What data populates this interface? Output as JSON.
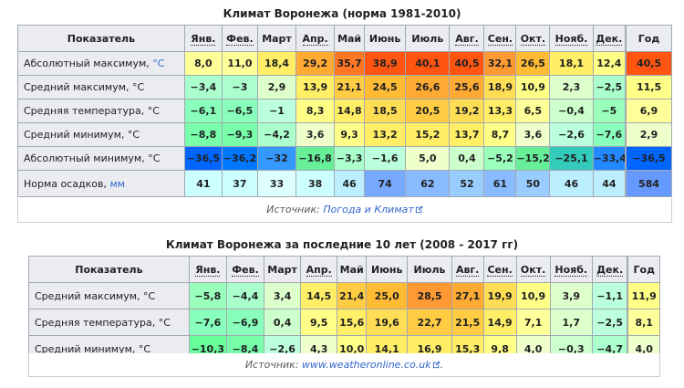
{
  "colors": {
    "header_bg": "#eaecf0",
    "border": "#a2a9b1",
    "link": "#3366cc"
  },
  "table1": {
    "caption": "Климат Воронежа (норма 1981-2010)",
    "header": {
      "label": "Показатель",
      "months": [
        "Янв.",
        "Фев.",
        "Март",
        "Апр.",
        "Май",
        "Июнь",
        "Июль",
        "Авг.",
        "Сен.",
        "Окт.",
        "Нояб.",
        "Дек."
      ],
      "year": "Год"
    },
    "rows": [
      {
        "label": "Абсолютный максимум, ",
        "unit": "°C",
        "values": [
          "8,0",
          "11,0",
          "18,4",
          "29,2",
          "35,7",
          "38,9",
          "40,1",
          "40,5",
          "32,1",
          "26,5",
          "18,1",
          "12,4"
        ],
        "year": "40,5",
        "colors": [
          "#ffff99",
          "#ffff99",
          "#ffee66",
          "#ffaa33",
          "#ff7722",
          "#ff5511",
          "#ff5511",
          "#ff5511",
          "#ff9933",
          "#ffbb33",
          "#ffee66",
          "#ffff88"
        ],
        "year_color": "#ff5511"
      },
      {
        "label": "Средний максимум, °C",
        "unit": "",
        "values": [
          "−3,4",
          "−3",
          "2,9",
          "13,9",
          "21,1",
          "24,5",
          "26,6",
          "25,6",
          "18,9",
          "10,9",
          "2,3",
          "−2,5"
        ],
        "year": "11,5",
        "colors": [
          "#aaffcc",
          "#aaffcc",
          "#ddffcc",
          "#ffee66",
          "#ffcc44",
          "#ffbb33",
          "#ffaa33",
          "#ffaa33",
          "#ffdd55",
          "#ffff88",
          "#ddffcc",
          "#aaffcc"
        ],
        "year_color": "#ffff88"
      },
      {
        "label": "Средняя температура, °C",
        "unit": "",
        "values": [
          "−6,1",
          "−6,5",
          "−1",
          "8,3",
          "14,8",
          "18,5",
          "20,5",
          "19,2",
          "13,3",
          "6,5",
          "−0,4",
          "−5"
        ],
        "year": "6,9",
        "colors": [
          "#88ffbb",
          "#88ffbb",
          "#bbffdd",
          "#ffff88",
          "#ffee66",
          "#ffdd55",
          "#ffcc44",
          "#ffdd55",
          "#ffee66",
          "#ffff99",
          "#ccffcc",
          "#99ffbb"
        ],
        "year_color": "#ffff99"
      },
      {
        "label": "Средний минимум, °C",
        "unit": "",
        "values": [
          "−8,8",
          "−9,3",
          "−4,2",
          "3,6",
          "9,3",
          "13,2",
          "15,2",
          "13,7",
          "8,7",
          "3,6",
          "−2,6",
          "−7,6"
        ],
        "year": "2,9",
        "colors": [
          "#77ffaa",
          "#77ffaa",
          "#aaffcc",
          "#eeffcc",
          "#ffff88",
          "#ffee66",
          "#ffee66",
          "#ffee66",
          "#ffff88",
          "#eeffcc",
          "#bbffdd",
          "#88ffbb"
        ],
        "year_color": "#eeffcc"
      },
      {
        "label": "Абсолютный минимум, °C",
        "unit": "",
        "values": [
          "−36,5",
          "−36,2",
          "−32",
          "−16,8",
          "−3,3",
          "−1,6",
          "5,0",
          "0,4",
          "−5,2",
          "−15,2",
          "−25,1",
          "−33,4"
        ],
        "year": "−36,5",
        "colors": [
          "#0066ff",
          "#0077ff",
          "#3399ff",
          "#66ee99",
          "#aaffcc",
          "#bbffdd",
          "#eeffcc",
          "#ccffcc",
          "#99ffbb",
          "#66ee99",
          "#33ccbb",
          "#2288ff"
        ],
        "year_color": "#0066ff"
      }
    ],
    "precip": {
      "label": "Норма осадков, ",
      "unit": "мм",
      "values": [
        "41",
        "37",
        "33",
        "38",
        "46",
        "74",
        "62",
        "52",
        "61",
        "50",
        "46",
        "44"
      ],
      "year": "584",
      "colors": [
        "#ccffff",
        "#ccffff",
        "#ddffff",
        "#ccffff",
        "#bbeeff",
        "#77aaff",
        "#88bbff",
        "#99ccff",
        "#88bbff",
        "#99ccff",
        "#bbeeff",
        "#bbeeff"
      ],
      "year_color": "#6699ff"
    },
    "source": {
      "prefix": "Источник: ",
      "link": "Погода и Климат"
    }
  },
  "table2": {
    "caption": "Климат Воронежа за последние 10 лет (2008 - 2017 гг)",
    "header": {
      "label": "Показатель",
      "months": [
        "Янв.",
        "Фев.",
        "Март",
        "Апр.",
        "Май",
        "Июнь",
        "Июль",
        "Авг.",
        "Сен.",
        "Окт.",
        "Нояб.",
        "Дек."
      ],
      "year": "Год"
    },
    "rows": [
      {
        "label": "Средний максимум, °C",
        "values": [
          "−5,8",
          "−4,4",
          "3,4",
          "14,5",
          "21,4",
          "25,0",
          "28,5",
          "27,1",
          "19,9",
          "10,9",
          "3,9",
          "−1,1"
        ],
        "year": "11,9",
        "colors": [
          "#99ffbb",
          "#aaffcc",
          "#ddffcc",
          "#ffee66",
          "#ffcc44",
          "#ffbb33",
          "#ff9933",
          "#ffaa33",
          "#ffdd55",
          "#ffff88",
          "#ddffcc",
          "#bbffdd"
        ],
        "year_color": "#ffff88"
      },
      {
        "label": "Средняя температура, °C",
        "values": [
          "−7,6",
          "−6,9",
          "0,4",
          "9,5",
          "15,6",
          "19,6",
          "22,7",
          "21,5",
          "14,9",
          "7,1",
          "1,7",
          "−2,5"
        ],
        "year": "8,1",
        "colors": [
          "#88ffbb",
          "#88ffbb",
          "#ccffcc",
          "#ffff88",
          "#ffee66",
          "#ffdd55",
          "#ffcc44",
          "#ffcc44",
          "#ffee66",
          "#ffff99",
          "#ddffcc",
          "#bbffdd"
        ],
        "year_color": "#ffff99"
      },
      {
        "label": "Средний минимум, °C",
        "values": [
          "−10,3",
          "−8,4",
          "−2,6",
          "4,3",
          "10,0",
          "14,1",
          "16,9",
          "15,3",
          "9,8",
          "4,0",
          "−0,3",
          "−4,7"
        ],
        "year": "4,0",
        "colors": [
          "#66ff99",
          "#77ffaa",
          "#bbffdd",
          "#eeffcc",
          "#ffff88",
          "#ffee66",
          "#ffee66",
          "#ffee66",
          "#ffff88",
          "#eeffcc",
          "#ccffcc",
          "#aaffcc"
        ],
        "year_color": "#eeffcc"
      }
    ],
    "source": {
      "prefix": "Источник: ",
      "link": "www.weatheronline.co.uk",
      "suffix": "."
    }
  }
}
